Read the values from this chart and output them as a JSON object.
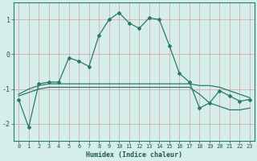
{
  "xlabel": "Humidex (Indice chaleur)",
  "x": [
    0,
    1,
    2,
    3,
    4,
    5,
    6,
    7,
    8,
    9,
    10,
    11,
    12,
    13,
    14,
    15,
    16,
    17,
    18,
    19,
    20,
    21,
    22,
    23
  ],
  "line1": [
    -1.3,
    -2.1,
    -0.85,
    -0.8,
    -0.8,
    -0.1,
    -0.2,
    -0.35,
    0.55,
    1.0,
    1.2,
    0.9,
    0.75,
    1.05,
    1.0,
    0.25,
    -0.55,
    -0.8,
    -1.55,
    -1.4,
    -1.05,
    -1.2,
    -1.35,
    -1.3
  ],
  "line2": [
    -1.15,
    -1.0,
    -0.9,
    -0.85,
    -0.85,
    -0.85,
    -0.85,
    -0.85,
    -0.85,
    -0.85,
    -0.85,
    -0.85,
    -0.85,
    -0.85,
    -0.85,
    -0.85,
    -0.85,
    -0.85,
    -0.9,
    -0.9,
    -0.95,
    -1.05,
    -1.15,
    -1.25
  ],
  "line3": [
    -1.2,
    -1.1,
    -1.0,
    -0.95,
    -0.95,
    -0.95,
    -0.95,
    -0.95,
    -0.95,
    -0.95,
    -0.95,
    -0.95,
    -0.95,
    -0.95,
    -0.95,
    -0.95,
    -0.95,
    -0.95,
    -1.15,
    -1.4,
    -1.5,
    -1.6,
    -1.6,
    -1.55
  ],
  "line_color": "#2a7a6a",
  "bg_color": "#d5eeea",
  "grid_color": "#d4a0a0",
  "ylim": [
    -2.5,
    1.5
  ],
  "yticks": [
    -2,
    -1,
    0,
    1
  ],
  "xlim": [
    -0.5,
    23.5
  ],
  "xticks": [
    0,
    1,
    2,
    3,
    4,
    5,
    6,
    7,
    8,
    9,
    10,
    11,
    12,
    13,
    14,
    15,
    16,
    17,
    18,
    19,
    20,
    21,
    22,
    23
  ]
}
